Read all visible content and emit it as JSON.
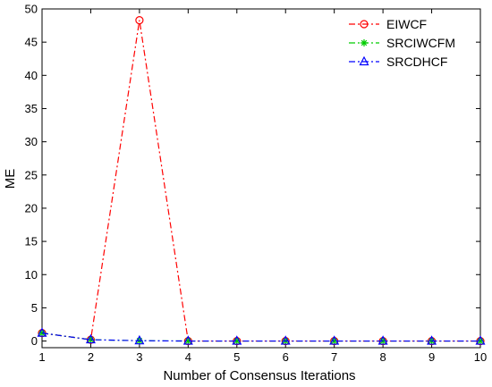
{
  "chart_data": {
    "type": "line",
    "title": "",
    "xlabel": "Number of Consensus Iterations",
    "ylabel": "ME",
    "xlim": [
      1,
      10
    ],
    "ylim": [
      -1,
      50
    ],
    "xticks": [
      1,
      2,
      3,
      4,
      5,
      6,
      7,
      8,
      9,
      10
    ],
    "yticks": [
      0,
      5,
      10,
      15,
      20,
      25,
      30,
      35,
      40,
      45,
      50
    ],
    "x": [
      1,
      2,
      3,
      4,
      5,
      6,
      7,
      8,
      9,
      10
    ],
    "grid": false,
    "legend_position": "top-right",
    "series": [
      {
        "name": "EIWCF",
        "color": "#ff0000",
        "marker": "circle",
        "line_style": "dash-dot",
        "values": [
          1.2,
          0.2,
          48.3,
          0.0,
          0.0,
          0.0,
          0.0,
          0.0,
          0.0,
          0.0
        ]
      },
      {
        "name": "SRCIWCFM",
        "color": "#00cc00",
        "marker": "star",
        "line_style": "dash-dot",
        "values": [
          1.2,
          0.2,
          0.05,
          0.0,
          0.0,
          0.0,
          0.0,
          0.0,
          0.0,
          0.0
        ]
      },
      {
        "name": "SRCDHCF",
        "color": "#0000ff",
        "marker": "triangle",
        "line_style": "dash-dot",
        "values": [
          1.2,
          0.2,
          0.05,
          0.0,
          0.0,
          0.0,
          0.0,
          0.0,
          0.0,
          0.0
        ]
      }
    ]
  }
}
